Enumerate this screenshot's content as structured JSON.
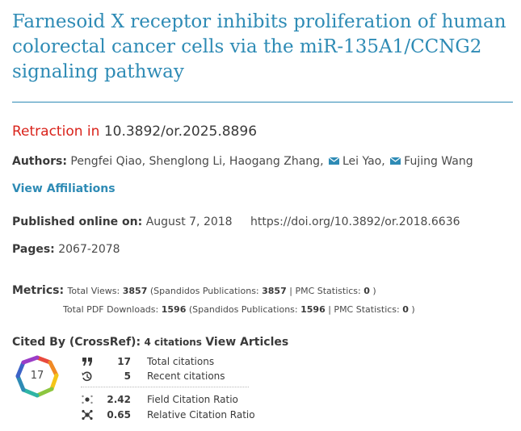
{
  "article": {
    "title": "Farnesoid X receptor inhibits proliferation of human colorectal cancer cells via the miR-135A1/CCNG2 signaling pathway"
  },
  "retraction": {
    "label": "Retraction in",
    "doi": "10.3892/or.2025.8896"
  },
  "authors": {
    "label": "Authors:",
    "names": "Pengfei Qiao, Shenglong Li, Haogang Zhang,",
    "corresponding1": "Lei Yao,",
    "corresponding2": "Fujing Wang"
  },
  "affiliations": {
    "label": "View Affiliations"
  },
  "published": {
    "label": "Published online on:",
    "date": "August 7, 2018",
    "doi_url": "https://doi.org/10.3892/or.2018.6636"
  },
  "pages": {
    "label": "Pages:",
    "range": "2067-2078"
  },
  "metrics": {
    "label": "Metrics:",
    "views_label": "Total Views:",
    "views": "3857",
    "views_spandidos_label": "(Spandidos Publications:",
    "views_spandidos": "3857",
    "views_pmc_label": "| PMC Statistics:",
    "views_pmc": "0",
    "close": ")",
    "downloads_label": "Total PDF Downloads:",
    "downloads": "1596",
    "downloads_spandidos_label": "(Spandidos Publications:",
    "downloads_spandidos": "1596",
    "downloads_pmc_label": "| PMC Statistics:",
    "downloads_pmc": "0"
  },
  "cited_by": {
    "label": "Cited By (CrossRef):",
    "count": "4 citations",
    "view_articles": "View Articles"
  },
  "dimensions": {
    "badge_number": "17",
    "total_citations": "17",
    "total_citations_label": "Total citations",
    "recent_citations": "5",
    "recent_citations_label": "Recent citations",
    "field_citation_ratio": "2.42",
    "field_citation_ratio_label": "Field Citation Ratio",
    "relative_citation_ratio": "0.65",
    "relative_citation_ratio_label": "Relative Citation Ratio"
  },
  "colors": {
    "title_blue": "#2e8bb5",
    "retraction_red": "#d9231b"
  },
  "icons": [
    "envelope-icon",
    "quote-icon",
    "history-icon",
    "field-ratio-icon",
    "relative-ratio-icon",
    "dimensions-badge-icon"
  ]
}
